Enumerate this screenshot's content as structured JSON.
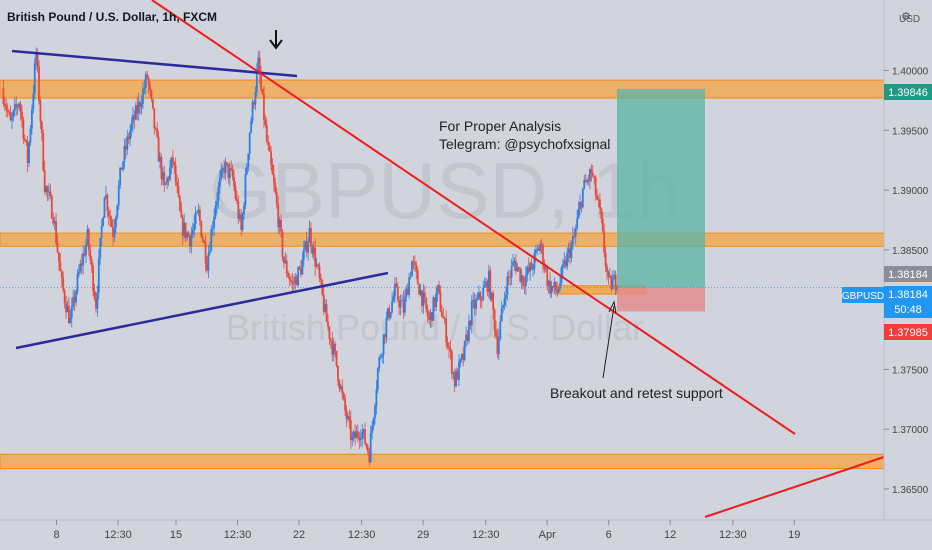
{
  "header": {
    "title": "British Pound / U.S. Dollar, 1h, FXCM",
    "currency": "USD"
  },
  "watermark": {
    "symbol": "GBPUSD, 1h",
    "name": "British Pound / U.S. Dollar"
  },
  "annotations": {
    "analysis_line1": "For Proper Analysis",
    "analysis_line2": "Telegram: @psychofxsignal",
    "breakout_note": "Breakout and retest support"
  },
  "price_tags": {
    "target": "1.39846",
    "last_close": "1.38184",
    "symbol": "GBPUSD",
    "current": "1.38184",
    "countdown": "50:48",
    "stop": "1.37985"
  },
  "colors": {
    "background": "#d1d4dc",
    "zone": "#f5a442",
    "up_candle": "#2f7fe0",
    "down_candle": "#e8493c",
    "trendline_blue": "#2b2b9c",
    "trendline_red": "#ee1c1c",
    "profit_zone": "#5fb5a5",
    "loss_zone": "#e38a8a",
    "tag_green": "#1f9a82",
    "tag_blue": "#2196f3",
    "tag_red": "#f23b3b",
    "tag_gray": "#8a8e98"
  },
  "chart_data": {
    "type": "candlestick",
    "title": "British Pound / U.S. Dollar, 1h, FXCM",
    "x_ticks": [
      "8",
      "12:30",
      "15",
      "12:30",
      "22",
      "12:30",
      "29",
      "12:30",
      "Apr",
      "6",
      "12",
      "12:30",
      "19"
    ],
    "y_ticks": [
      "1.40000",
      "1.39500",
      "1.39000",
      "1.38500",
      "1.38000",
      "1.37500",
      "1.37000",
      "1.36500"
    ],
    "ylim": [
      1.3624,
      1.4059
    ],
    "price_series": [
      [
        0,
        1.3985
      ],
      [
        1,
        1.3955
      ],
      [
        2,
        1.3975
      ],
      [
        3,
        1.3925
      ],
      [
        4,
        1.4015
      ],
      [
        5,
        1.3905
      ],
      [
        6,
        1.388
      ],
      [
        7,
        1.382
      ],
      [
        8,
        1.379
      ],
      [
        9,
        1.383
      ],
      [
        10,
        1.386
      ],
      [
        11,
        1.3805
      ],
      [
        12,
        1.39
      ],
      [
        13,
        1.3865
      ],
      [
        14,
        1.392
      ],
      [
        15,
        1.395
      ],
      [
        16,
        1.397
      ],
      [
        17,
        1.3995
      ],
      [
        18,
        1.3945
      ],
      [
        19,
        1.39
      ],
      [
        20,
        1.3925
      ],
      [
        21,
        1.387
      ],
      [
        22,
        1.386
      ],
      [
        23,
        1.388
      ],
      [
        24,
        1.384
      ],
      [
        25,
        1.389
      ],
      [
        26,
        1.392
      ],
      [
        27,
        1.391
      ],
      [
        28,
        1.3865
      ],
      [
        29,
        1.395
      ],
      [
        30,
        1.4005
      ],
      [
        31,
        1.394
      ],
      [
        32,
        1.3895
      ],
      [
        33,
        1.384
      ],
      [
        34,
        1.382
      ],
      [
        35,
        1.3835
      ],
      [
        36,
        1.3865
      ],
      [
        37,
        1.383
      ],
      [
        38,
        1.379
      ],
      [
        39,
        1.376
      ],
      [
        40,
        1.372
      ],
      [
        41,
        1.369
      ],
      [
        42,
        1.37
      ],
      [
        43,
        1.368
      ],
      [
        44,
        1.375
      ],
      [
        45,
        1.379
      ],
      [
        46,
        1.3815
      ],
      [
        47,
        1.38
      ],
      [
        48,
        1.384
      ],
      [
        49,
        1.3815
      ],
      [
        50,
        1.379
      ],
      [
        51,
        1.3815
      ],
      [
        52,
        1.378
      ],
      [
        53,
        1.374
      ],
      [
        54,
        1.376
      ],
      [
        55,
        1.38
      ],
      [
        56,
        1.381
      ],
      [
        57,
        1.3825
      ],
      [
        58,
        1.377
      ],
      [
        59,
        1.382
      ],
      [
        60,
        1.384
      ],
      [
        61,
        1.3825
      ],
      [
        62,
        1.3835
      ],
      [
        63,
        1.3855
      ],
      [
        64,
        1.382
      ],
      [
        65,
        1.3815
      ],
      [
        66,
        1.384
      ],
      [
        67,
        1.386
      ],
      [
        68,
        1.39
      ],
      [
        69,
        1.3915
      ],
      [
        70,
        1.388
      ],
      [
        71,
        1.382
      ],
      [
        72,
        1.3825
      ]
    ],
    "levels": {
      "resistance_zone": [
        1.3977,
        1.3992
      ],
      "mid_zone": [
        1.3853,
        1.3864
      ],
      "support_zone": [
        1.3667,
        1.3679
      ],
      "retest_zone": [
        1.3813,
        1.382
      ],
      "current_price": 1.38184
    },
    "position": {
      "type": "long",
      "entry": 1.38184,
      "target": 1.39846,
      "stop": 1.37985
    },
    "grid": false,
    "legend": "none"
  }
}
